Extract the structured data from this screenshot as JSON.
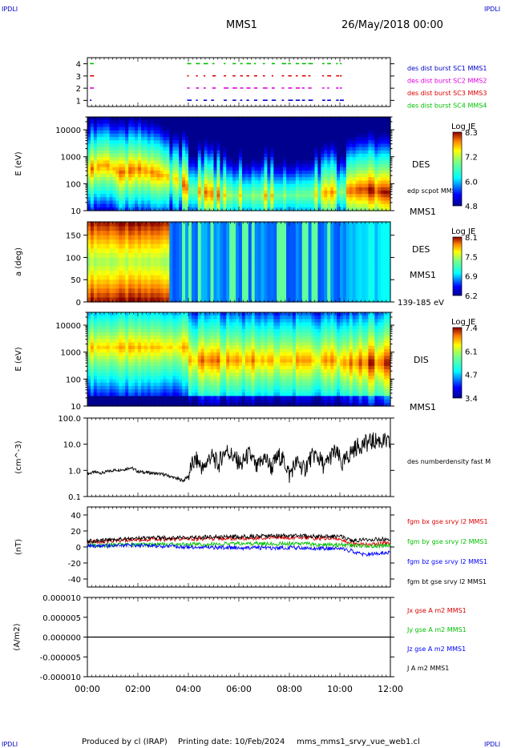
{
  "header": {
    "corner_left": "IPDLI",
    "corner_right": "IPDLI",
    "title": "MMS1",
    "date": "26/May/2018 00:00"
  },
  "footer": {
    "produced": "Produced by cl (IRAP)",
    "printing": "Printing date: 10/Feb/2024",
    "file": "mms_mms1_srvy_vue_web1.cl",
    "corner_left": "IPDLI",
    "corner_right": "IPDLI"
  },
  "colors": {
    "c1": "#0000c8",
    "c2": "#e000e0",
    "c3": "#dd0000",
    "c4": "#00c000",
    "bx": "#dd0000",
    "by": "#00c000",
    "bz": "#0000ff",
    "bt": "#000000"
  },
  "chart_data": [
    {
      "type": "scatter",
      "id": "burst_availability",
      "x": [
        "00:00",
        "02:00",
        "04:00",
        "06:00",
        "08:00",
        "10:00",
        "12:00"
      ],
      "ylim": [
        0.5,
        4.5
      ],
      "yticks": [
        "1",
        "2",
        "3",
        "4"
      ],
      "series": [
        {
          "name": "des dist burst SC1 MMS1",
          "y": 1,
          "color_key": "c1",
          "x": [
            0.1,
            3.95,
            4.3,
            4.6,
            4.9,
            5.4,
            5.75,
            6.05,
            6.3,
            6.6,
            6.95,
            7.3,
            7.7,
            7.95,
            8.25,
            8.5,
            8.75,
            9.3,
            9.5,
            9.85,
            10.0
          ]
        },
        {
          "name": "des dist burst SC2 MMS2",
          "y": 2,
          "color_key": "c2",
          "x": [
            0.1,
            3.95,
            4.3,
            4.6,
            4.95,
            5.4,
            5.75,
            6.05,
            6.3,
            6.6,
            6.95,
            7.3,
            7.7,
            7.95,
            8.25,
            8.5,
            8.75,
            9.3,
            9.5,
            9.85,
            10.0
          ]
        },
        {
          "name": "des dist burst SC3 MMS3",
          "y": 3,
          "color_key": "c3",
          "x": [
            0.1,
            3.95,
            4.3,
            4.6,
            4.95,
            5.4,
            5.75,
            6.05,
            6.3,
            6.6,
            6.95,
            7.3,
            7.7,
            7.95,
            8.25,
            8.5,
            8.75,
            9.3,
            9.5,
            9.85,
            10.0
          ]
        },
        {
          "name": "des dist burst SC4 MMS4",
          "y": 4,
          "color_key": "c4",
          "x": [
            0.1,
            3.95,
            4.3,
            4.6,
            4.95,
            5.4,
            5.75,
            6.05,
            6.3,
            6.6,
            6.95,
            7.3,
            7.7,
            7.95,
            8.25,
            8.5,
            8.75,
            9.3,
            9.5,
            9.85,
            10.0
          ]
        }
      ]
    },
    {
      "type": "heatmap",
      "id": "des_energy",
      "ylabel": "E (eV)",
      "yscale": "log",
      "ylim": [
        10,
        30000
      ],
      "yticks": [
        "10",
        "100",
        "1000",
        "10000"
      ],
      "label": "DES",
      "sublabel": "edp scpot MMS1",
      "sc": "MMS1",
      "colorbar": {
        "title": "Log JE",
        "max": "8.3",
        "t1": "7.2",
        "t2": "6.0",
        "min": "4.8",
        "range": [
          4.8,
          8.3
        ]
      },
      "peak_energy_eV": [
        {
          "t": 0.0,
          "peak": 300
        },
        {
          "t": 0.7,
          "peak": 500
        },
        {
          "t": 1.3,
          "peak": 250
        },
        {
          "t": 2.0,
          "peak": 350
        },
        {
          "t": 2.8,
          "peak": 220
        },
        {
          "t": 3.5,
          "peak": 150
        },
        {
          "t": 4.0,
          "peak": 60
        },
        {
          "t": 5.0,
          "peak": 40
        },
        {
          "t": 6.0,
          "peak": 35
        },
        {
          "t": 7.5,
          "peak": 35
        },
        {
          "t": 9.0,
          "peak": 40
        },
        {
          "t": 10.0,
          "peak": 50
        },
        {
          "t": 11.0,
          "peak": 60
        },
        {
          "t": 12.0,
          "peak": 45
        }
      ]
    },
    {
      "type": "heatmap",
      "id": "des_pitch_angle",
      "ylabel": "a (deg)",
      "ylim": [
        0,
        180
      ],
      "yticks": [
        "0",
        "50",
        "100",
        "150"
      ],
      "label": "DES",
      "sc": "MMS1",
      "energy_range": "139-185 eV",
      "colorbar": {
        "title": "Log JE",
        "max": "8.1",
        "t1": "7.5",
        "t2": "6.9",
        "min": "6.2",
        "range": [
          6.2,
          8.1
        ]
      }
    },
    {
      "type": "heatmap",
      "id": "dis_energy",
      "ylabel": "E (eV)",
      "yscale": "log",
      "ylim": [
        10,
        30000
      ],
      "yticks": [
        "10",
        "100",
        "1000",
        "10000"
      ],
      "label": "DIS",
      "sc": "MMS1",
      "colorbar": {
        "title": "Log JE",
        "max": "7.4",
        "t1": "6.1",
        "t2": "4.7",
        "min": "3.4",
        "range": [
          3.4,
          7.4
        ]
      }
    },
    {
      "type": "line",
      "id": "density",
      "ylabel": "(cm^-3)",
      "yscale": "log",
      "ylim": [
        0.1,
        100
      ],
      "yticks": [
        "0.1",
        "1.0",
        "10.0",
        "100.0"
      ],
      "series": [
        {
          "name": "des numberdensity fast M",
          "color_key": "bt",
          "points": [
            [
              0.0,
              0.75
            ],
            [
              0.3,
              0.85
            ],
            [
              0.6,
              0.8
            ],
            [
              1.0,
              1.0
            ],
            [
              1.5,
              1.1
            ],
            [
              1.7,
              1.3
            ],
            [
              2.0,
              0.9
            ],
            [
              2.5,
              0.8
            ],
            [
              3.0,
              0.7
            ],
            [
              3.5,
              0.5
            ],
            [
              3.8,
              0.4
            ],
            [
              4.0,
              0.6
            ],
            [
              4.3,
              2.5
            ],
            [
              4.6,
              1.0
            ],
            [
              4.9,
              3.5
            ],
            [
              5.2,
              1.5
            ],
            [
              5.5,
              6.0
            ],
            [
              5.8,
              3.0
            ],
            [
              6.1,
              1.5
            ],
            [
              6.4,
              4.0
            ],
            [
              6.7,
              1.0
            ],
            [
              7.0,
              3.0
            ],
            [
              7.3,
              1.2
            ],
            [
              7.6,
              3.5
            ],
            [
              8.0,
              0.6
            ],
            [
              8.3,
              2.0
            ],
            [
              8.6,
              1.0
            ],
            [
              9.0,
              4.0
            ],
            [
              9.4,
              1.2
            ],
            [
              9.8,
              5.0
            ],
            [
              10.1,
              1.5
            ],
            [
              10.3,
              3.0
            ],
            [
              10.6,
              7.0
            ],
            [
              10.9,
              10.0
            ],
            [
              11.2,
              12.0
            ],
            [
              11.5,
              14.0
            ],
            [
              11.8,
              12.0
            ],
            [
              12.0,
              10.0
            ]
          ]
        }
      ]
    },
    {
      "type": "line",
      "id": "fgm_b",
      "ylabel": "(nT)",
      "ylim": [
        -50,
        50
      ],
      "yticks": [
        "-40",
        "-20",
        "0",
        "20",
        "40"
      ],
      "series": [
        {
          "name": "fgm bx gse srvy l2 MMS1",
          "color_key": "bx",
          "points": [
            [
              0,
              6
            ],
            [
              2,
              9
            ],
            [
              4,
              10
            ],
            [
              6,
              11
            ],
            [
              8,
              12
            ],
            [
              10,
              10
            ],
            [
              10.5,
              4
            ],
            [
              11,
              3
            ],
            [
              12,
              5
            ]
          ]
        },
        {
          "name": "fgm by gse srvy l2 MMS1",
          "color_key": "by",
          "points": [
            [
              0,
              2
            ],
            [
              2,
              3
            ],
            [
              4,
              3
            ],
            [
              6,
              4
            ],
            [
              8,
              4
            ],
            [
              10,
              3
            ],
            [
              11,
              1
            ],
            [
              12,
              2
            ]
          ]
        },
        {
          "name": "fgm bz gse srvy l2 MMS1",
          "color_key": "bz",
          "points": [
            [
              0,
              1
            ],
            [
              2,
              2
            ],
            [
              4,
              0
            ],
            [
              6,
              -1
            ],
            [
              8,
              -1
            ],
            [
              10,
              -2
            ],
            [
              10.5,
              -5
            ],
            [
              11,
              -10
            ],
            [
              12,
              -6
            ]
          ]
        },
        {
          "name": "fgm bt gse srvy l2 MMS1",
          "color_key": "bt",
          "points": [
            [
              0,
              7
            ],
            [
              2,
              11
            ],
            [
              4,
              12
            ],
            [
              6,
              13
            ],
            [
              8,
              14
            ],
            [
              10,
              13
            ],
            [
              10.5,
              8
            ],
            [
              11,
              9
            ],
            [
              12,
              10
            ]
          ]
        }
      ]
    },
    {
      "type": "line",
      "id": "current_density",
      "ylabel": "(A/m2)",
      "ylim": [
        -1e-05,
        1e-05
      ],
      "yticks": [
        "-0.000010",
        "-0.000005",
        "0.000000",
        "0.000005",
        "0.000010"
      ],
      "series": [
        {
          "name": "Jx gse A m2 MMS1",
          "color_key": "bx",
          "points": [
            [
              0,
              0
            ],
            [
              12,
              0
            ]
          ]
        },
        {
          "name": "Jy gse A m2 MMS1",
          "color_key": "by",
          "points": [
            [
              0,
              0
            ],
            [
              12,
              0
            ]
          ]
        },
        {
          "name": "Jz gse A m2 MMS1",
          "color_key": "bz",
          "points": [
            [
              0,
              0
            ],
            [
              12,
              0
            ]
          ]
        },
        {
          "name": "J A m2 MMS1",
          "color_key": "bt",
          "points": [
            [
              0,
              0
            ],
            [
              12,
              0
            ]
          ]
        }
      ]
    }
  ],
  "time_axis": {
    "labels": [
      "00:00",
      "02:00",
      "04:00",
      "06:00",
      "08:00",
      "10:00",
      "12:00"
    ],
    "range_hours": [
      0,
      12
    ]
  }
}
